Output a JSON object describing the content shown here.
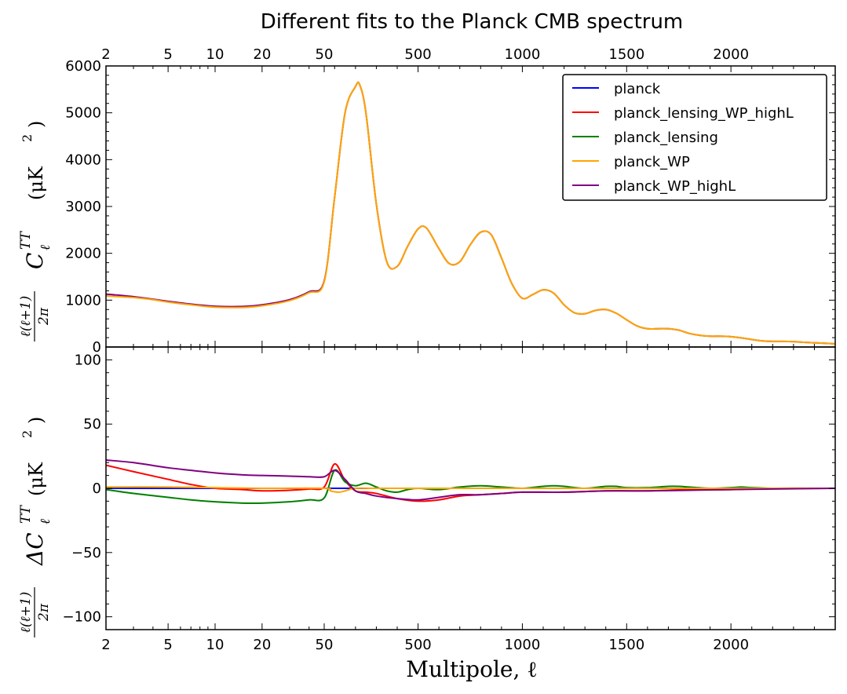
{
  "chart_data": {
    "type": "line",
    "title": "Different fits to the Planck CMB spectrum",
    "xlabel": "Multipole, ℓ",
    "x_scale": "piecewise: log for ℓ ≤ 50, linear for ℓ > 50",
    "x_range": [
      2,
      2500
    ],
    "x_ticks": [
      2,
      5,
      10,
      20,
      50,
      500,
      1000,
      1500,
      2000
    ],
    "x_tick_labels": [
      "2",
      "5",
      "10",
      "20",
      "50",
      "500",
      "1000",
      "1500",
      "2000"
    ],
    "legend_position": "top-right",
    "colors": {
      "planck": "#0000ff",
      "planck_lensing_WP_highL": "#ff0000",
      "planck_lensing": "#008000",
      "planck_WP": "#ffa500",
      "planck_WP_highL": "#800080"
    },
    "legend": [
      "planck",
      "planck_lensing_WP_highL",
      "planck_lensing",
      "planck_WP",
      "planck_WP_highL"
    ],
    "panels": [
      {
        "name": "top",
        "ylabel": "ℓ(ℓ+1)/2π C_ℓ^TT (μK²)",
        "ylabel_fraction": "ℓ(ℓ+1)",
        "ylabel_den": "2π",
        "ylabel_main": "C",
        "ylabel_sub": "ℓ",
        "ylabel_sup": "TT",
        "ylabel_unit": "(μK",
        "ylim": [
          0,
          6000
        ],
        "y_ticks": [
          "0",
          "1000",
          "2000",
          "3000",
          "4000",
          "5000",
          "6000"
        ],
        "series": [
          {
            "name": "planck_WP_highL",
            "x": [
              2,
              3,
              4,
              5,
              7,
              10,
              15,
              20,
              30,
              40,
              50,
              100,
              150,
              200,
              220,
              250,
              300,
              350,
              400,
              450,
              500,
              540,
              600,
              650,
              700,
              750,
              800,
              850,
              900,
              950,
              1000,
              1050,
              1100,
              1150,
              1200,
              1250,
              1300,
              1350,
              1400,
              1450,
              1500,
              1550,
              1600,
              1650,
              1700,
              1750,
              1800,
              1850,
              1900,
              1950,
              2000,
              2050,
              2100,
              2150,
              2200,
              2250,
              2300,
              2350,
              2400,
              2450,
              2500
            ],
            "y": [
              1130,
              1075,
              1020,
              975,
              915,
              870,
              865,
              900,
              1010,
              1180,
              1410,
              3200,
              5000,
              5560,
              5600,
              5000,
              3050,
              1820,
              1720,
              2150,
              2520,
              2540,
              2100,
              1780,
              1820,
              2180,
              2450,
              2400,
              1900,
              1350,
              1040,
              1120,
              1220,
              1150,
              900,
              730,
              710,
              780,
              800,
              720,
              580,
              450,
              390,
              390,
              390,
              360,
              290,
              250,
              230,
              230,
              220,
              195,
              160,
              130,
              120,
              120,
              115,
              100,
              90,
              80,
              70
            ]
          },
          {
            "name": "planck_WP",
            "x": [
              2,
              3,
              4,
              5,
              7,
              10,
              15,
              20,
              30,
              40,
              50,
              100,
              150,
              200,
              220,
              250,
              300,
              350,
              400,
              450,
              500,
              540,
              600,
              650,
              700,
              750,
              800,
              850,
              900,
              950,
              1000,
              1050,
              1100,
              1150,
              1200,
              1250,
              1300,
              1350,
              1400,
              1450,
              1500,
              1550,
              1600,
              1650,
              1700,
              1750,
              1800,
              1850,
              1900,
              1950,
              2000,
              2050,
              2100,
              2150,
              2200,
              2250,
              2300,
              2350,
              2400,
              2450,
              2500
            ],
            "y": [
              1090,
              1055,
              1010,
              960,
              900,
              850,
              845,
              880,
              990,
              1160,
              1390,
              3200,
              5000,
              5560,
              5600,
              5000,
              3050,
              1820,
              1720,
              2150,
              2520,
              2540,
              2100,
              1780,
              1820,
              2180,
              2450,
              2400,
              1900,
              1350,
              1040,
              1120,
              1220,
              1150,
              900,
              730,
              710,
              780,
              800,
              720,
              580,
              450,
              390,
              390,
              390,
              360,
              290,
              250,
              230,
              230,
              220,
              195,
              160,
              130,
              120,
              120,
              115,
              100,
              90,
              80,
              70
            ]
          }
        ]
      },
      {
        "name": "bottom",
        "ylabel": "ℓ(ℓ+1)/2π ΔC_ℓ^TT (μK²)",
        "ylabel_fraction": "ℓ(ℓ+1)",
        "ylabel_den": "2π",
        "ylabel_main": "ΔC",
        "ylabel_sub": "ℓ",
        "ylabel_sup": "TT",
        "ylabel_unit": "(μK",
        "ylim": [
          -110,
          110
        ],
        "y_ticks": [
          "100",
          "50",
          "0",
          "−50",
          "−100"
        ],
        "series": [
          {
            "name": "planck",
            "x": [
              2,
              2500
            ],
            "y": [
              0,
              0
            ]
          },
          {
            "name": "planck_lensing_WP_highL",
            "x": [
              2,
              3,
              5,
              7,
              10,
              15,
              20,
              30,
              40,
              50,
              100,
              150,
              200,
              250,
              300,
              400,
              500,
              600,
              700,
              800,
              900,
              1000,
              1200,
              1400,
              1600,
              1800,
              2000,
              2200,
              2500
            ],
            "y": [
              18,
              13,
              7,
              3,
              0,
              -1,
              -2,
              -1.5,
              -0.5,
              1,
              19,
              6,
              -2,
              -3,
              -4,
              -8,
              -10,
              -9,
              -6,
              -5,
              -4,
              -3,
              -3,
              -2,
              -2,
              -1,
              -1,
              0,
              0
            ]
          },
          {
            "name": "planck_lensing",
            "x": [
              2,
              3,
              5,
              7,
              10,
              15,
              20,
              30,
              40,
              50,
              100,
              150,
              200,
              250,
              300,
              350,
              400,
              450,
              500,
              600,
              700,
              800,
              900,
              1000,
              1100,
              1150,
              1200,
              1300,
              1400,
              1450,
              1500,
              1600,
              1700,
              1750,
              1800,
              1900,
              2000,
              2050,
              2100,
              2200,
              2300,
              2500
            ],
            "y": [
              -1,
              -4,
              -7,
              -9,
              -10.5,
              -11.5,
              -11.5,
              -10.5,
              -9,
              -7.5,
              14,
              5,
              2,
              4,
              1,
              -2,
              -3,
              -1,
              0,
              -1,
              1,
              2,
              1,
              0,
              1.5,
              2,
              1.5,
              0,
              1.5,
              1.5,
              0.5,
              0.5,
              1.5,
              1.5,
              1,
              0,
              0.5,
              1,
              0.5,
              0,
              0,
              0
            ]
          },
          {
            "name": "planck_WP",
            "x": [
              2,
              5,
              10,
              20,
              50,
              80,
              120,
              150,
              200,
              300,
              500,
              1000,
              1500,
              2000,
              2500
            ],
            "y": [
              1,
              1,
              0.5,
              0,
              0,
              -2,
              -3,
              -2,
              0,
              0,
              0,
              0,
              0,
              0,
              0
            ]
          },
          {
            "name": "planck_WP_highL",
            "x": [
              2,
              3,
              5,
              7,
              10,
              15,
              20,
              30,
              40,
              50,
              100,
              150,
              200,
              250,
              300,
              400,
              500,
              600,
              700,
              800,
              900,
              1000,
              1200,
              1400,
              1600,
              1800,
              2000,
              2200,
              2500
            ],
            "y": [
              22,
              20,
              16,
              14,
              12,
              10.5,
              10,
              9.5,
              9,
              9,
              14,
              7,
              -2,
              -4,
              -6,
              -8,
              -9,
              -7,
              -5,
              -5,
              -4,
              -3,
              -3,
              -2,
              -2,
              -1.5,
              -1,
              -0.5,
              0
            ]
          }
        ]
      }
    ]
  }
}
